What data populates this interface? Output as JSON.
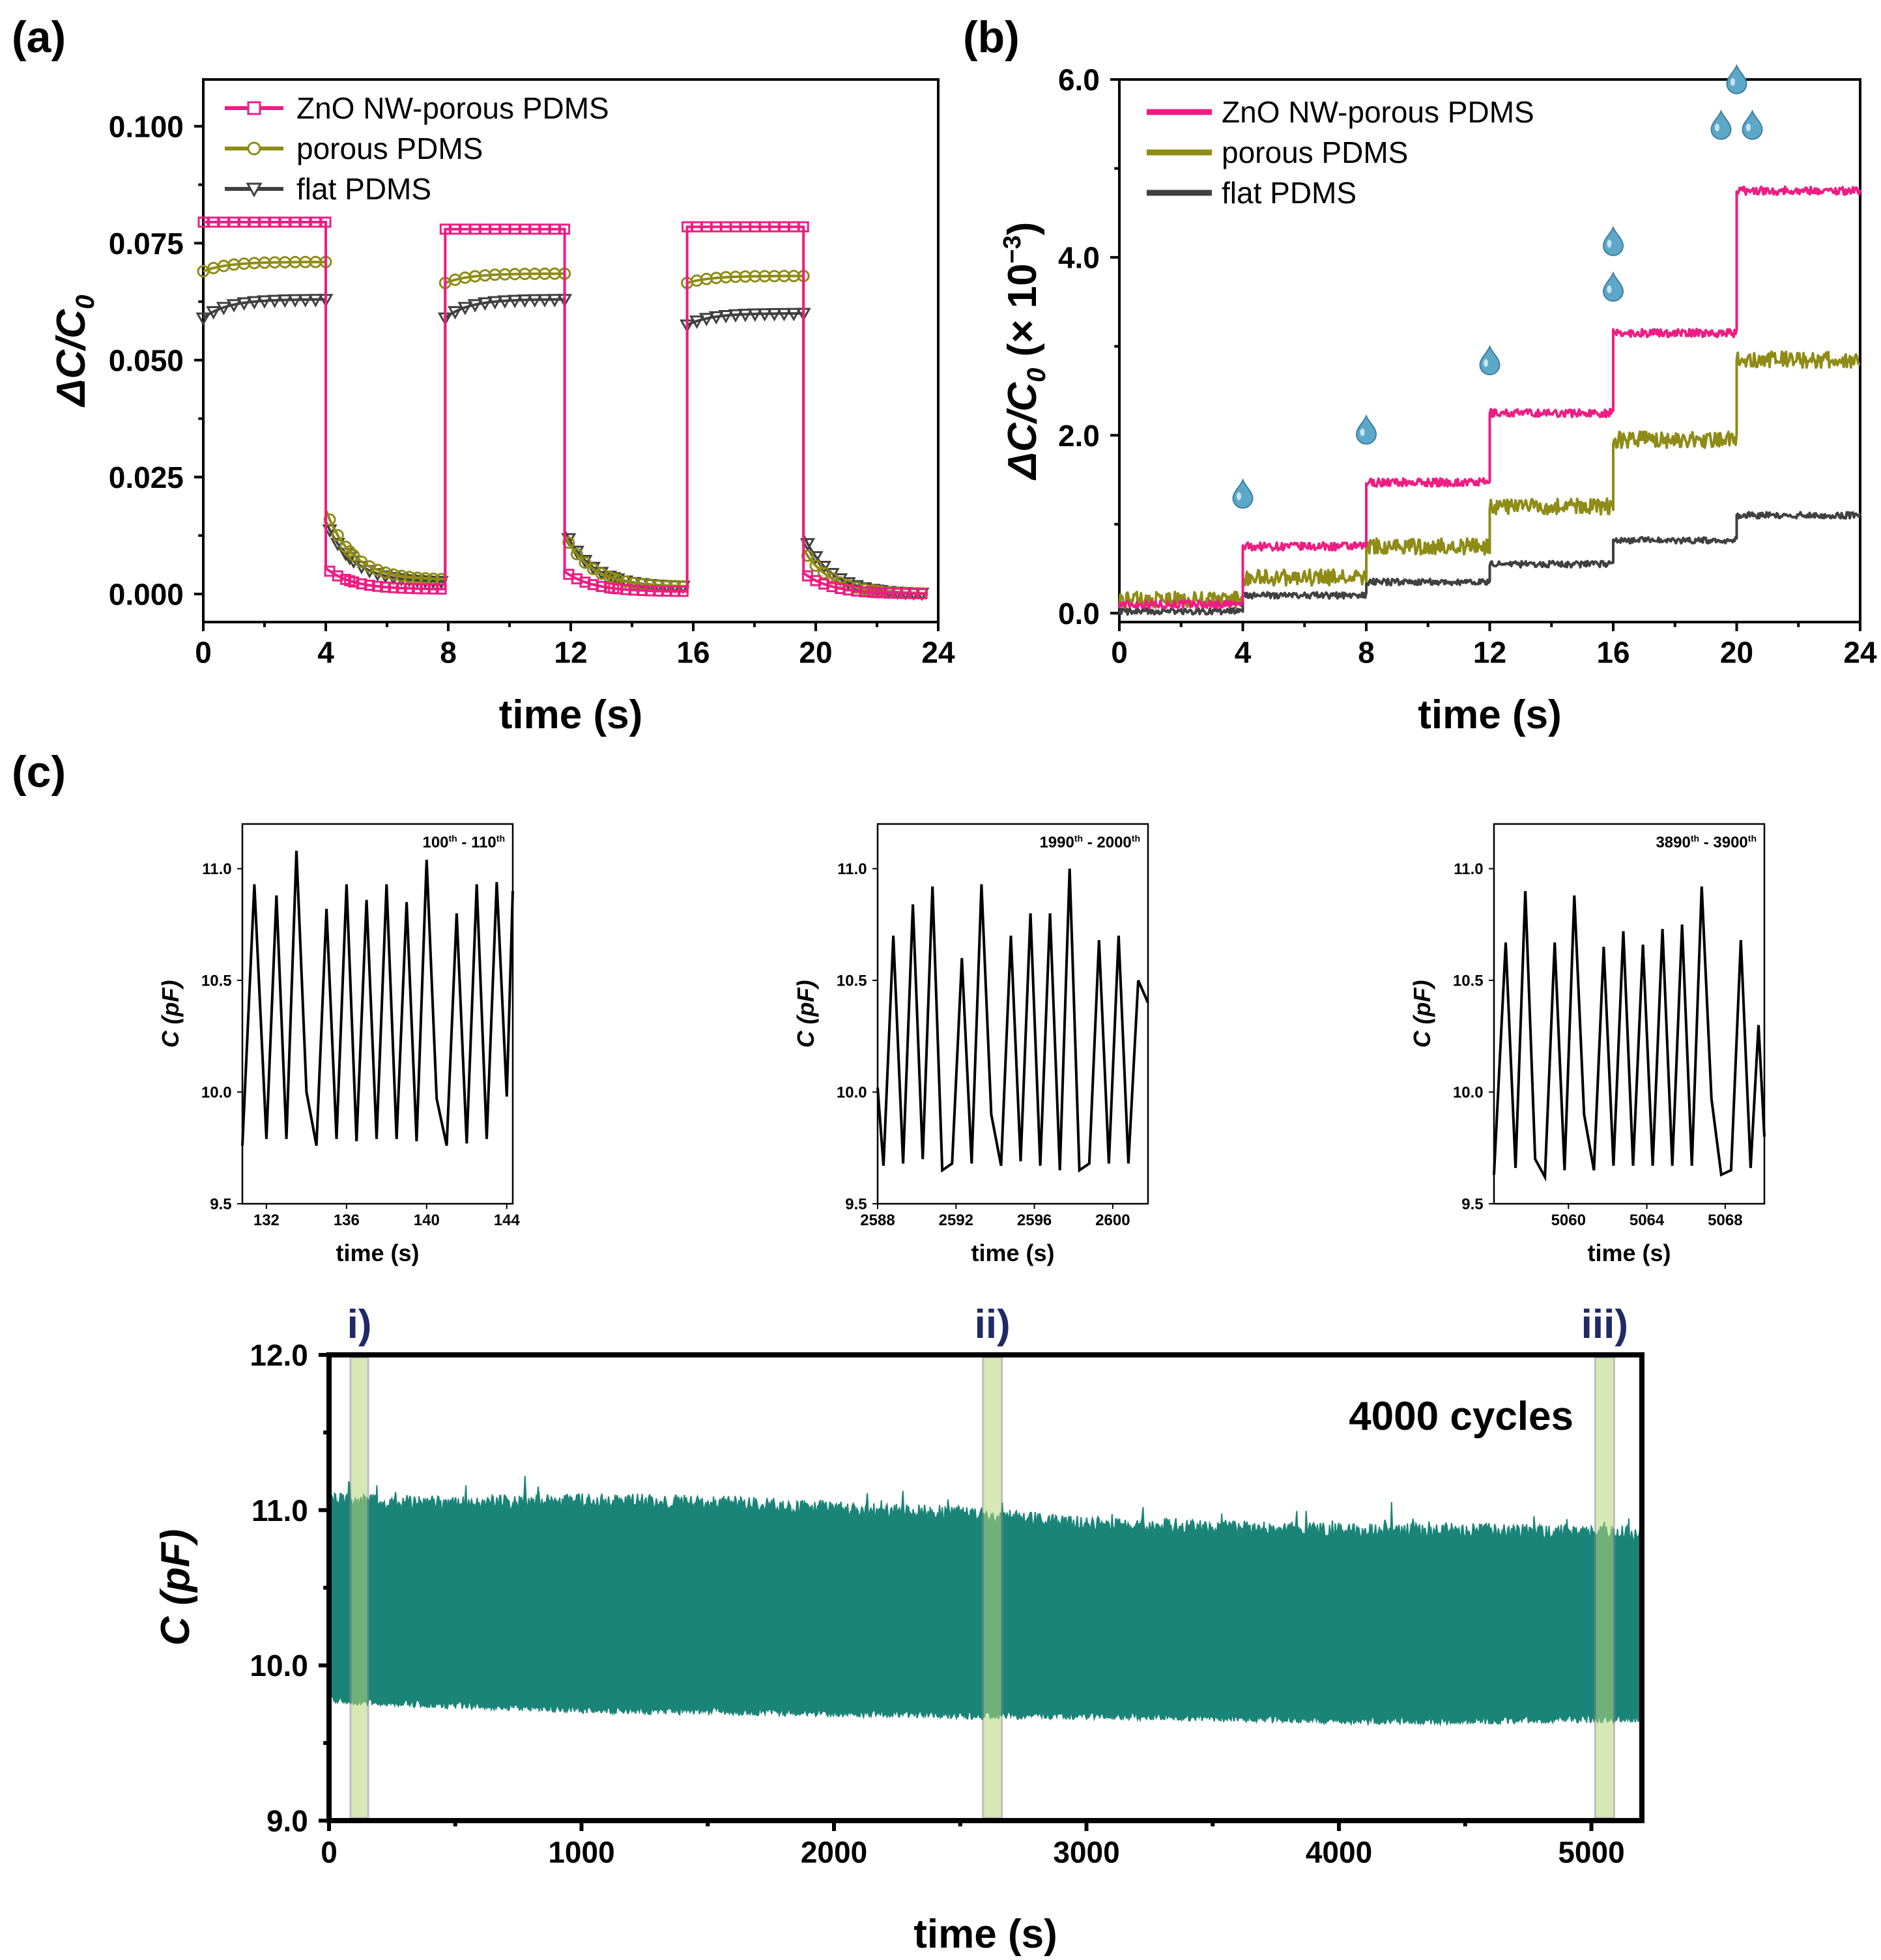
{
  "panels": {
    "a": "(a)",
    "b": "(b)",
    "c": "(c)"
  },
  "colors": {
    "zno": "#ee1d83",
    "porous": "#8e8c16",
    "flat": "#404040",
    "cycle": "#1a8478",
    "band": "#b5d67a",
    "droplet": "#5da7c9"
  },
  "chart_data": [
    {
      "id": "a",
      "type": "line",
      "title": "",
      "xlabel": "time (s)",
      "ylabel": "ΔC/C",
      "ylabel_sub": "0",
      "xlim": [
        0,
        24
      ],
      "ylim": [
        -0.006,
        0.11
      ],
      "xticks": [
        0,
        4,
        8,
        12,
        16,
        20,
        24
      ],
      "xtick_labels": [
        "0",
        "4",
        "8",
        "12",
        "16",
        "20",
        "24"
      ],
      "yticks": [
        0,
        0.025,
        0.05,
        0.075,
        0.1
      ],
      "ytick_labels": [
        "0.000",
        "0.025",
        "0.050",
        "0.075",
        "0.100"
      ],
      "legend": [
        "ZnO NW-porous PDMS",
        "porous PDMS",
        "flat PDMS"
      ],
      "series": [
        {
          "name": "ZnO NW-porous PDMS",
          "marker": "square",
          "on": [
            [
              0,
              4,
              0.0795
            ],
            [
              7.9,
              11.8,
              0.078
            ],
            [
              15.8,
              19.6,
              0.0785
            ]
          ],
          "off": [
            [
              4,
              7.9,
              0.0055,
              0.001
            ],
            [
              11.8,
              15.8,
              0.0048,
              0.0005
            ],
            [
              19.6,
              23.6,
              0.0045,
              0.0
            ]
          ]
        },
        {
          "name": "porous PDMS",
          "marker": "circle",
          "on": [
            [
              0,
              4,
              0.069,
              0.071
            ],
            [
              7.9,
              11.8,
              0.0665,
              0.0685
            ],
            [
              15.8,
              19.6,
              0.0665,
              0.068
            ]
          ],
          "off": [
            [
              4,
              7.9,
              0.018,
              0.003
            ],
            [
              11.8,
              15.8,
              0.0125,
              0.0015
            ],
            [
              19.6,
              23.6,
              0.0095,
              0.0
            ]
          ]
        },
        {
          "name": "flat PDMS",
          "marker": "triangle-down",
          "on": [
            [
              0,
              4,
              0.059,
              0.063
            ],
            [
              7.9,
              11.8,
              0.059,
              0.063
            ],
            [
              15.8,
              19.6,
              0.0575,
              0.06
            ]
          ],
          "off": [
            [
              4,
              7.9,
              0.0155,
              0.0025
            ],
            [
              11.8,
              15.8,
              0.0135,
              0.0015
            ],
            [
              19.6,
              23.6,
              0.0125,
              0.0
            ]
          ]
        }
      ]
    },
    {
      "id": "b",
      "type": "line",
      "title": "",
      "xlabel": "time (s)",
      "ylabel": "ΔC/C",
      "ylabel_sub": "0",
      "ylabel_tail": " (× 10",
      "ylabel_sup": "−3",
      "ylabel_end": ")",
      "xlim": [
        0,
        24
      ],
      "ylim": [
        -0.1,
        6.0
      ],
      "xticks": [
        0,
        4,
        8,
        12,
        16,
        20,
        24
      ],
      "xtick_labels": [
        "0",
        "4",
        "8",
        "12",
        "16",
        "20",
        "24"
      ],
      "yticks": [
        0,
        2,
        4,
        6
      ],
      "ytick_labels": [
        "0.0",
        "2.0",
        "4.0",
        "6.0"
      ],
      "legend": [
        "ZnO NW-porous PDMS",
        "porous PDMS",
        "flat PDMS"
      ],
      "step_times": [
        0,
        4,
        8,
        12,
        16,
        20,
        24
      ],
      "series": [
        {
          "name": "ZnO NW-porous PDMS",
          "levels": [
            0.1,
            0.75,
            1.47,
            2.25,
            3.15,
            4.75
          ]
        },
        {
          "name": "porous PDMS",
          "levels": [
            0.15,
            0.4,
            0.75,
            1.2,
            1.95,
            2.85
          ]
        },
        {
          "name": "flat PDMS",
          "levels": [
            0.02,
            0.2,
            0.35,
            0.55,
            0.82,
            1.1
          ]
        }
      ],
      "droplet_counts": [
        1,
        1,
        1,
        2,
        3
      ]
    },
    {
      "id": "c-main",
      "type": "area",
      "title": "",
      "xlabel": "time (s)",
      "ylabel": "C (pF)",
      "xlim": [
        0,
        5200
      ],
      "ylim": [
        9.0,
        12.0
      ],
      "xticks": [
        0,
        1000,
        2000,
        3000,
        4000,
        5000
      ],
      "xtick_labels": [
        "0",
        "1000",
        "2000",
        "3000",
        "4000",
        "5000"
      ],
      "yticks": [
        9.0,
        10.0,
        11.0,
        12.0
      ],
      "ytick_labels": [
        "9.0",
        "10.0",
        "11.0",
        "12.0"
      ],
      "annotation": "4000 cycles",
      "upper_envelope": [
        [
          0,
          11.07
        ],
        [
          500,
          11.05
        ],
        [
          1000,
          11.07
        ],
        [
          1500,
          11.06
        ],
        [
          2000,
          11.02
        ],
        [
          2600,
          10.98
        ],
        [
          3000,
          10.92
        ],
        [
          3500,
          10.9
        ],
        [
          4000,
          10.88
        ],
        [
          4500,
          10.88
        ],
        [
          5000,
          10.86
        ],
        [
          5200,
          10.86
        ]
      ],
      "lower_envelope": [
        [
          0,
          9.77
        ],
        [
          500,
          9.74
        ],
        [
          1000,
          9.71
        ],
        [
          1500,
          9.7
        ],
        [
          2000,
          9.69
        ],
        [
          2600,
          9.67
        ],
        [
          3000,
          9.67
        ],
        [
          3500,
          9.66
        ],
        [
          4000,
          9.64
        ],
        [
          4500,
          9.64
        ],
        [
          5000,
          9.65
        ],
        [
          5200,
          9.65
        ]
      ],
      "highlight_ranges": [
        [
          85,
          155
        ],
        [
          2590,
          2665
        ],
        [
          5015,
          5090
        ]
      ],
      "highlight_labels": [
        "i)",
        "ii)",
        "iii)"
      ]
    },
    {
      "id": "c-inset-1",
      "type": "line",
      "xlabel": "time (s)",
      "ylabel": "C (pF)",
      "label_base": "100",
      "label_sup": "th",
      "label_sep": " - ",
      "label_end": "110",
      "label_end_sup": "th",
      "xlim": [
        130.8,
        144.3
      ],
      "ylim": [
        9.5,
        11.2
      ],
      "xticks": [
        132,
        136,
        140,
        144
      ],
      "xtick_labels": [
        "132",
        "136",
        "140",
        "144"
      ],
      "yticks": [
        9.5,
        10.0,
        10.5,
        11.0
      ],
      "ytick_labels": [
        "9.5",
        "10.0",
        "10.5",
        "11.0"
      ],
      "x": [
        130.8,
        131.4,
        132.0,
        132.5,
        133.0,
        133.5,
        134.0,
        134.5,
        135.0,
        135.5,
        136.0,
        136.5,
        137.0,
        137.5,
        138.0,
        138.5,
        139.0,
        139.5,
        140.0,
        140.5,
        141.0,
        141.5,
        142.0,
        142.5,
        143.0,
        143.5,
        144.0,
        144.3
      ],
      "y": [
        9.76,
        10.93,
        9.79,
        10.88,
        9.79,
        11.08,
        10.0,
        9.76,
        10.82,
        9.79,
        10.93,
        9.78,
        10.86,
        9.79,
        10.93,
        9.79,
        10.85,
        9.78,
        11.04,
        9.97,
        9.76,
        10.8,
        9.77,
        10.93,
        9.79,
        10.94,
        9.98,
        10.9
      ]
    },
    {
      "id": "c-inset-2",
      "type": "line",
      "xlabel": "time (s)",
      "ylabel": "C (pF)",
      "label_base": "1990",
      "label_sup": "th",
      "label_sep": " - ",
      "label_end": "2000",
      "label_end_sup": "th",
      "xlim": [
        2588,
        2601.8
      ],
      "ylim": [
        9.5,
        11.2
      ],
      "xticks": [
        2588,
        2592,
        2596,
        2600
      ],
      "xtick_labels": [
        "2588",
        "2592",
        "2596",
        "2600"
      ],
      "yticks": [
        9.5,
        10.0,
        10.5,
        11.0
      ],
      "ytick_labels": [
        "9.5",
        "10.0",
        "10.5",
        "11.0"
      ],
      "x": [
        2588.0,
        2588.3,
        2588.8,
        2589.3,
        2589.8,
        2590.3,
        2590.8,
        2591.3,
        2591.8,
        2592.3,
        2592.8,
        2593.3,
        2593.8,
        2594.3,
        2594.8,
        2595.3,
        2595.8,
        2596.3,
        2596.8,
        2597.3,
        2597.8,
        2598.3,
        2598.8,
        2599.3,
        2599.8,
        2600.3,
        2600.8,
        2601.3,
        2601.8
      ],
      "y": [
        10.02,
        9.67,
        10.7,
        9.68,
        10.84,
        9.7,
        10.92,
        9.65,
        9.68,
        10.6,
        9.68,
        10.93,
        9.9,
        9.67,
        10.7,
        9.69,
        10.8,
        9.67,
        10.8,
        9.65,
        11.0,
        9.65,
        9.68,
        10.68,
        9.68,
        10.7,
        9.68,
        10.5,
        10.4
      ]
    },
    {
      "id": "c-inset-3",
      "type": "line",
      "xlabel": "time (s)",
      "ylabel": "C (pF)",
      "label_base": "3890",
      "label_sup": "th",
      "label_sep": " - ",
      "label_end": "3900",
      "label_end_sup": "th",
      "xlim": [
        5056.2,
        5070.0
      ],
      "ylim": [
        9.5,
        11.2
      ],
      "xticks": [
        5060,
        5064,
        5068
      ],
      "xtick_labels": [
        "5060",
        "5064",
        "5068"
      ],
      "yticks": [
        9.5,
        10.0,
        10.5,
        11.0
      ],
      "ytick_labels": [
        "9.5",
        "10.0",
        "10.5",
        "11.0"
      ],
      "x": [
        5056.2,
        5056.8,
        5057.3,
        5057.8,
        5058.3,
        5058.8,
        5059.3,
        5059.8,
        5060.3,
        5060.8,
        5061.3,
        5061.8,
        5062.3,
        5062.8,
        5063.3,
        5063.8,
        5064.3,
        5064.8,
        5065.3,
        5065.8,
        5066.3,
        5066.8,
        5067.3,
        5067.8,
        5068.3,
        5068.8,
        5069.3,
        5069.7,
        5070.0
      ],
      "y": [
        9.63,
        10.67,
        9.66,
        10.9,
        9.7,
        9.62,
        10.67,
        9.65,
        10.88,
        9.9,
        9.65,
        10.65,
        9.67,
        10.72,
        9.67,
        10.66,
        9.67,
        10.73,
        9.67,
        10.75,
        9.67,
        10.92,
        9.97,
        9.63,
        9.65,
        10.68,
        9.66,
        10.3,
        9.8
      ]
    }
  ]
}
